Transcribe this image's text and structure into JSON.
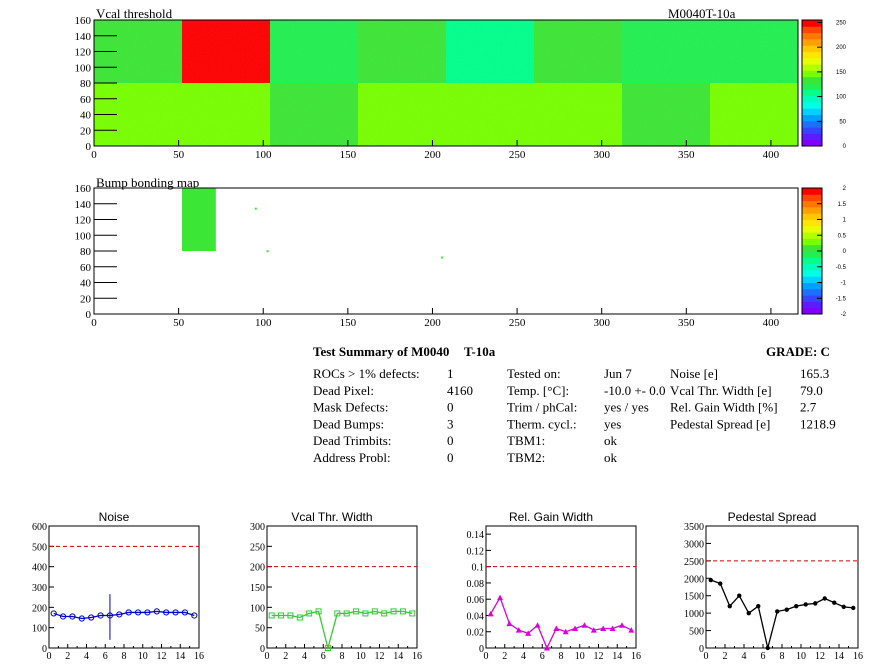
{
  "maps": [
    {
      "title": "Vcal threshold",
      "module_label": "M0040T-10a",
      "x_ticks": [
        0,
        50,
        100,
        150,
        200,
        250,
        300,
        350,
        400
      ],
      "y_ticks": [
        0,
        20,
        40,
        60,
        80,
        100,
        120,
        140,
        160
      ],
      "palette_ticks": [
        "0",
        "50",
        "100",
        "150",
        "200",
        "250"
      ]
    },
    {
      "title": "Bump bonding map",
      "x_ticks": [
        0,
        50,
        100,
        150,
        200,
        250,
        300,
        350,
        400
      ],
      "y_ticks": [
        0,
        20,
        40,
        60,
        80,
        100,
        120,
        140,
        160
      ],
      "palette_ticks": [
        "-2",
        "-1.5",
        "-1",
        "-0.5",
        "0",
        "0.5",
        "1",
        "1.5",
        "2"
      ]
    }
  ],
  "summary": {
    "title": "Test Summary of M0040",
    "title_suffix": "T-10a",
    "grade": "GRADE:  C",
    "col1": [
      {
        "label": "ROCs > 1% defects:",
        "value": "1"
      },
      {
        "label": "Dead Pixel:",
        "value": "4160"
      },
      {
        "label": "Mask Defects:",
        "value": "0"
      },
      {
        "label": "Dead Bumps:",
        "value": "3"
      },
      {
        "label": "Dead Trimbits:",
        "value": "0"
      },
      {
        "label": "Address Probl:",
        "value": "0"
      }
    ],
    "col2": [
      {
        "label": "Tested on:",
        "value": "Jun 7"
      },
      {
        "label": "Temp. [°C]:",
        "value": "-10.0 +- 0.0"
      },
      {
        "label": "Trim / phCal:",
        "value": "yes / yes"
      },
      {
        "label": "Therm. cycl.:",
        "value": "yes"
      },
      {
        "label": "TBM1:",
        "value": "ok"
      },
      {
        "label": "TBM2:",
        "value": "ok"
      }
    ],
    "col3": [
      {
        "label": "Noise [e]",
        "value": "165.3"
      },
      {
        "label": "Vcal Thr. Width [e]",
        "value": "79.0"
      },
      {
        "label": "Rel. Gain Width [%]",
        "value": "2.7"
      },
      {
        "label": "Pedestal Spread [e]",
        "value": "1218.9"
      }
    ]
  },
  "chart_data": [
    {
      "type": "heatmap",
      "title": "Vcal threshold",
      "xlim": [
        0,
        416
      ],
      "ylim": [
        0,
        160
      ],
      "zlim": [
        0,
        255
      ],
      "roc_blocks": [
        {
          "x": [
            0,
            52
          ],
          "y": [
            0,
            80
          ],
          "value": 150
        },
        {
          "x": [
            52,
            104
          ],
          "y": [
            0,
            80
          ],
          "value": 148
        },
        {
          "x": [
            104,
            156
          ],
          "y": [
            0,
            80
          ],
          "value": 140
        },
        {
          "x": [
            156,
            208
          ],
          "y": [
            0,
            80
          ],
          "value": 145
        },
        {
          "x": [
            208,
            260
          ],
          "y": [
            0,
            80
          ],
          "value": 142
        },
        {
          "x": [
            260,
            312
          ],
          "y": [
            0,
            80
          ],
          "value": 148
        },
        {
          "x": [
            312,
            364
          ],
          "y": [
            0,
            80
          ],
          "value": 140
        },
        {
          "x": [
            364,
            416
          ],
          "y": [
            0,
            80
          ],
          "value": 144
        },
        {
          "x": [
            0,
            52
          ],
          "y": [
            80,
            160
          ],
          "value": 128
        },
        {
          "x": [
            52,
            104
          ],
          "y": [
            80,
            160
          ],
          "value": 245
        },
        {
          "x": [
            104,
            156
          ],
          "y": [
            80,
            160
          ],
          "value": 125
        },
        {
          "x": [
            156,
            208
          ],
          "y": [
            80,
            160
          ],
          "value": 130
        },
        {
          "x": [
            208,
            260
          ],
          "y": [
            80,
            160
          ],
          "value": 110
        },
        {
          "x": [
            260,
            312
          ],
          "y": [
            80,
            160
          ],
          "value": 130
        },
        {
          "x": [
            312,
            364
          ],
          "y": [
            80,
            160
          ],
          "value": 115
        },
        {
          "x": [
            364,
            416
          ],
          "y": [
            80,
            160
          ],
          "value": 125
        }
      ],
      "palette": "rainbow",
      "palette_ticks": [
        0,
        50,
        100,
        150,
        200,
        250
      ]
    },
    {
      "type": "heatmap",
      "title": "Bump bonding map",
      "xlim": [
        0,
        416
      ],
      "ylim": [
        0,
        160
      ],
      "zlim": [
        -2,
        2
      ],
      "filled_region": {
        "x": [
          52,
          72
        ],
        "y": [
          80,
          160
        ],
        "value": 0
      },
      "isolated_pixels": [
        [
          95,
          135
        ],
        [
          102,
          81
        ],
        [
          205,
          73
        ]
      ],
      "palette": "rainbow",
      "palette_ticks": [
        -2,
        -1.5,
        -1,
        -0.5,
        0,
        0.5,
        1,
        1.5,
        2
      ]
    },
    {
      "type": "line",
      "title": "Noise",
      "x": [
        0,
        1,
        2,
        3,
        4,
        5,
        6,
        7,
        8,
        9,
        10,
        11,
        12,
        13,
        14,
        15
      ],
      "series": [
        {
          "values": [
            170,
            155,
            155,
            145,
            150,
            160,
            160,
            165,
            175,
            175,
            175,
            180,
            175,
            175,
            175,
            160
          ]
        }
      ],
      "error_bar": {
        "index": 6,
        "low": 40,
        "high": 265
      },
      "reference_line": 500,
      "xlim": [
        0,
        16
      ],
      "ylim": [
        0,
        600
      ],
      "y_ticks": [
        0,
        100,
        200,
        300,
        400,
        500,
        600
      ],
      "x_ticks": [
        0,
        2,
        4,
        6,
        8,
        10,
        12,
        14,
        16
      ],
      "color": "#0000cc",
      "marker": "circle"
    },
    {
      "type": "line",
      "title": "Vcal Thr. Width",
      "x": [
        0,
        1,
        2,
        3,
        4,
        5,
        6,
        7,
        8,
        9,
        10,
        11,
        12,
        13,
        14,
        15
      ],
      "series": [
        {
          "values": [
            80,
            80,
            80,
            75,
            85,
            90,
            0,
            85,
            85,
            90,
            85,
            90,
            85,
            90,
            90,
            85
          ]
        }
      ],
      "reference_line": 200,
      "xlim": [
        0,
        16
      ],
      "ylim": [
        0,
        300
      ],
      "y_ticks": [
        0,
        50,
        100,
        150,
        200,
        250,
        300
      ],
      "x_ticks": [
        0,
        2,
        4,
        6,
        8,
        10,
        12,
        14,
        16
      ],
      "color": "#33cc33",
      "marker": "square"
    },
    {
      "type": "line",
      "title": "Rel. Gain Width",
      "x": [
        0,
        1,
        2,
        3,
        4,
        5,
        6,
        7,
        8,
        9,
        10,
        11,
        12,
        13,
        14,
        15
      ],
      "series": [
        {
          "values": [
            0.042,
            0.062,
            0.03,
            0.022,
            0.018,
            0.028,
            0.0,
            0.024,
            0.02,
            0.024,
            0.028,
            0.022,
            0.024,
            0.024,
            0.028,
            0.022
          ]
        }
      ],
      "reference_line": 0.1,
      "xlim": [
        0,
        16
      ],
      "ylim": [
        0,
        0.15
      ],
      "y_ticks": [
        "0",
        "0.02",
        "0.04",
        "0.06",
        "0.08",
        "0.1",
        "0.12",
        "0.14"
      ],
      "x_ticks": [
        0,
        2,
        4,
        6,
        8,
        10,
        12,
        14,
        16
      ],
      "color": "#dd00dd",
      "marker": "triangle"
    },
    {
      "type": "line",
      "title": "Pedestal Spread",
      "x": [
        0,
        1,
        2,
        3,
        4,
        5,
        6,
        7,
        8,
        9,
        10,
        11,
        12,
        13,
        14,
        15
      ],
      "series": [
        {
          "values": [
            1950,
            1850,
            1200,
            1500,
            1000,
            1200,
            0,
            1050,
            1100,
            1200,
            1250,
            1280,
            1420,
            1300,
            1180,
            1150
          ]
        }
      ],
      "reference_line": 2500,
      "xlim": [
        0,
        16
      ],
      "ylim": [
        0,
        3500
      ],
      "y_ticks": [
        0,
        500,
        1000,
        1500,
        2000,
        2500,
        3000,
        3500
      ],
      "x_ticks": [
        0,
        2,
        4,
        6,
        8,
        10,
        12,
        14,
        16
      ],
      "color": "#000000",
      "marker": "star"
    }
  ]
}
